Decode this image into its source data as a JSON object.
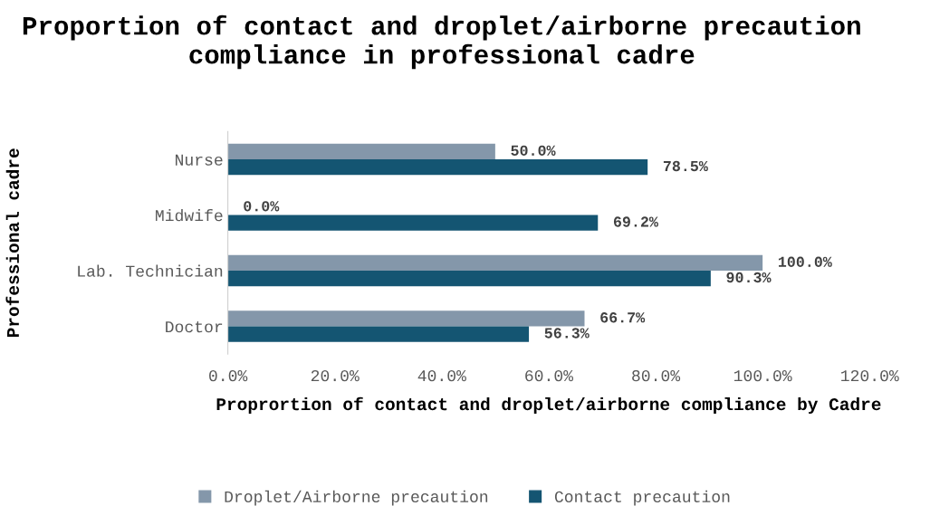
{
  "chart_data": {
    "type": "bar",
    "orientation": "horizontal",
    "title": "Proportion of contact and droplet/airborne precaution compliance in professional cadre",
    "xlabel": "Proprortion of contact and droplet/airborne compliance by Cadre",
    "ylabel": "Professional cadre",
    "categories": [
      "Nurse",
      "Midwife",
      "Lab. Technician",
      "Doctor"
    ],
    "series": [
      {
        "name": "Droplet/Airborne precaution",
        "color": "#8497aa",
        "values": [
          50.0,
          0.0,
          100.0,
          66.7
        ],
        "value_labels": [
          "50.0%",
          "0.0%",
          "100.0%",
          "66.7%"
        ]
      },
      {
        "name": "Contact precaution",
        "color": "#145572",
        "values": [
          78.5,
          69.2,
          90.3,
          56.3
        ],
        "value_labels": [
          "78.5%",
          "69.2%",
          "90.3%",
          "56.3%"
        ]
      }
    ],
    "xlim": [
      0,
      120
    ],
    "xticks": [
      {
        "value": 0,
        "label": "0.0%"
      },
      {
        "value": 20,
        "label": "20.0%"
      },
      {
        "value": 40,
        "label": "40.0%"
      },
      {
        "value": 60,
        "label": "60.0%"
      },
      {
        "value": 80,
        "label": "80.0%"
      },
      {
        "value": 100,
        "label": "100.0%"
      },
      {
        "value": 120,
        "label": "120.0%"
      }
    ],
    "grid": false,
    "legend": "bottom"
  }
}
